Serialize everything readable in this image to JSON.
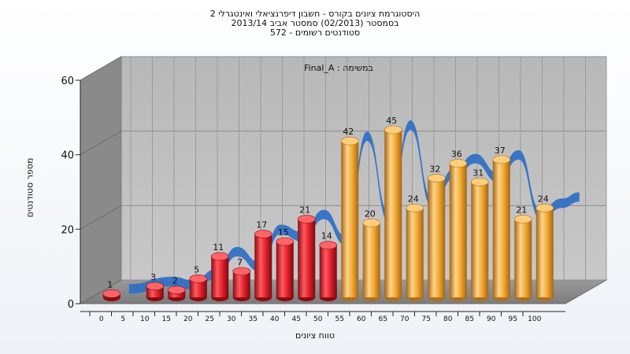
{
  "title_lines": [
    "היסטוגרמת ציונים בקורס - חשבון דיפרנציאלי ואינטגרלי 2",
    "בסמסטר  (02/2013)  סמסטר אביב 2013/14",
    "סטודנטים רשומים - 572"
  ],
  "chart_data": {
    "type": "bar",
    "panel_label": "במשימה : Final_A",
    "xlabel": "טווח ציונים",
    "ylabel": "מספר סטודנטים",
    "ylim": [
      0,
      60
    ],
    "yticks": [
      "0",
      "20",
      "40",
      "60"
    ],
    "x_ticks": [
      "0",
      "5",
      "10",
      "15",
      "20",
      "25",
      "30",
      "35",
      "40",
      "45",
      "50",
      "55",
      "60",
      "65",
      "70",
      "75",
      "80",
      "85",
      "90",
      "95",
      "100"
    ],
    "bar_colors": {
      "failing": "#e0202a",
      "passing": "#f0a830"
    },
    "wave_color": "#2e6fc4",
    "bars": [
      {
        "range_start": 0,
        "value": 1,
        "label": "1",
        "group": "failing"
      },
      {
        "range_start": 10,
        "value": 3,
        "label": "3",
        "group": "failing"
      },
      {
        "range_start": 15,
        "value": 2,
        "label": "2",
        "group": "failing"
      },
      {
        "range_start": 20,
        "value": 5,
        "label": "5",
        "group": "failing"
      },
      {
        "range_start": 25,
        "value": 11,
        "label": "11",
        "group": "failing"
      },
      {
        "range_start": 30,
        "value": 7,
        "label": "7",
        "group": "failing"
      },
      {
        "range_start": 35,
        "value": 17,
        "label": "17",
        "group": "failing"
      },
      {
        "range_start": 40,
        "value": 15,
        "label": "15",
        "group": "failing"
      },
      {
        "range_start": 45,
        "value": 21,
        "label": "21",
        "group": "failing"
      },
      {
        "range_start": 50,
        "value": 14,
        "label": "14",
        "group": "failing"
      },
      {
        "range_start": 55,
        "value": 42,
        "label": "42",
        "group": "passing"
      },
      {
        "range_start": 60,
        "value": 20,
        "label": "20",
        "group": "passing"
      },
      {
        "range_start": 65,
        "value": 45,
        "label": "45",
        "group": "passing"
      },
      {
        "range_start": 70,
        "value": 24,
        "label": "24",
        "group": "passing"
      },
      {
        "range_start": 75,
        "value": 32,
        "label": "32",
        "group": "passing"
      },
      {
        "range_start": 80,
        "value": 36,
        "label": "36",
        "group": "passing"
      },
      {
        "range_start": 85,
        "value": 31,
        "label": "31",
        "group": "passing"
      },
      {
        "range_start": 90,
        "value": 37,
        "label": "37",
        "group": "passing"
      },
      {
        "range_start": 95,
        "value": 21,
        "label": "21",
        "group": "passing"
      },
      {
        "range_start": 100,
        "value": 24,
        "label": "24",
        "group": "passing"
      }
    ]
  }
}
